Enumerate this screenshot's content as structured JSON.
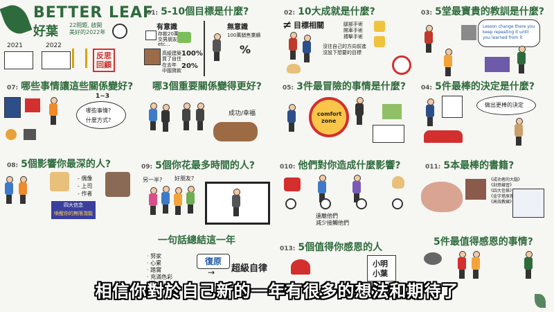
{
  "brand": {
    "title": "BETTER LEAF",
    "cn_name": "好葉",
    "desc_line1": "22問題, 啟開",
    "desc_line2": "美好的2022年"
  },
  "years": {
    "left": "2021",
    "right": "2022"
  },
  "stamp": {
    "line1": "反思",
    "line2": "回顧"
  },
  "questions": [
    {
      "num": "01:",
      "text": "5-10個目標是什麼?"
    },
    {
      "num": "02:",
      "text": "10大成就是什麼?"
    },
    {
      "num": "03:",
      "text": "5堂最寶貴的教訓是什麼?"
    },
    {
      "num": "07:",
      "text": "哪些事情讓這些關係變好?"
    },
    {
      "num": "",
      "text": "哪3個重要關係變得更好?"
    },
    {
      "num": "05:",
      "text": "3件最冒險的事情是什麼?"
    },
    {
      "num": "04:",
      "text": "5件最棒的決定是什麼?"
    },
    {
      "num": "08:",
      "text": "5個影響你最深的人?"
    },
    {
      "num": "09:",
      "text": "5個你花最多時間的人?"
    },
    {
      "num": "010:",
      "text": "他們對你造成什麼影響?"
    },
    {
      "num": "011:",
      "text": "5本最棒的書籍?"
    },
    {
      "num": "",
      "text": "一句話總結這一年"
    },
    {
      "num": "013:",
      "text": "5個值得你感恩的人"
    },
    {
      "num": "",
      "text": "5件最值得感恩的事情?"
    }
  ],
  "q1": {
    "meaningful": "有意識",
    "meaningless": "無意識",
    "row1a": "存款20萬",
    "row1b": "交男朋友",
    "row1c": "etc...",
    "row2a": "高級建築",
    "row2b": "買了自住",
    "row2c": "在去年",
    "row2d": "中國貸款",
    "pct_high": "100%",
    "pct_low": "20%",
    "sales": "100萬銷售業績",
    "pct": "%"
  },
  "q2": {
    "neq": "≠",
    "title": "目標相關",
    "list": [
      "腿部手術",
      "開車手術",
      "搏擊手術"
    ],
    "note1": "沒往自己的方向前進",
    "note2": "沒設下想要的目標"
  },
  "q3": {
    "bubble": "Lesson change there you keep repeating it until you learned from it"
  },
  "q7": {
    "range": "1~3",
    "bubble1": "哪些事情?",
    "bubble2": "什麼方式?"
  },
  "q6": {
    "tag": "成功/幸福"
  },
  "q5": {
    "zone1": "comfort",
    "zone2": "zone"
  },
  "q4": {
    "bubble": "做出更棒的決定"
  },
  "q8": {
    "list": [
      "- 偶像",
      "- 上司",
      "- 作者"
    ],
    "banner1": "四大信念",
    "banner2": "喚醒你的無限潛能"
  },
  "q9": {
    "bubble1": "另一半?",
    "bubble2": "好朋友?"
  },
  "q10": {
    "note1": "遠離他們",
    "note2": "減少接觸他們"
  },
  "q11": {
    "books": [
      "《成功者的大腦》",
      "《刻意練習》",
      "《四大信條》",
      "《金字塔原理》",
      "《高效教練》"
    ]
  },
  "q12": {
    "tags": [
      "· 努家",
      "· 心累",
      "· 踏實",
      "· 充滿色彩"
    ],
    "word1": "復原",
    "word2": "超級自律",
    "arrow": "→"
  },
  "q13": {
    "names": [
      "小明",
      "小葉"
    ]
  },
  "subtitle": "相信你對於自己新的一年有很多的想法和期待了",
  "colors": {
    "brand": "#2e6b3c",
    "accent": "#d32f2f",
    "paper": "#f6f6f3"
  }
}
